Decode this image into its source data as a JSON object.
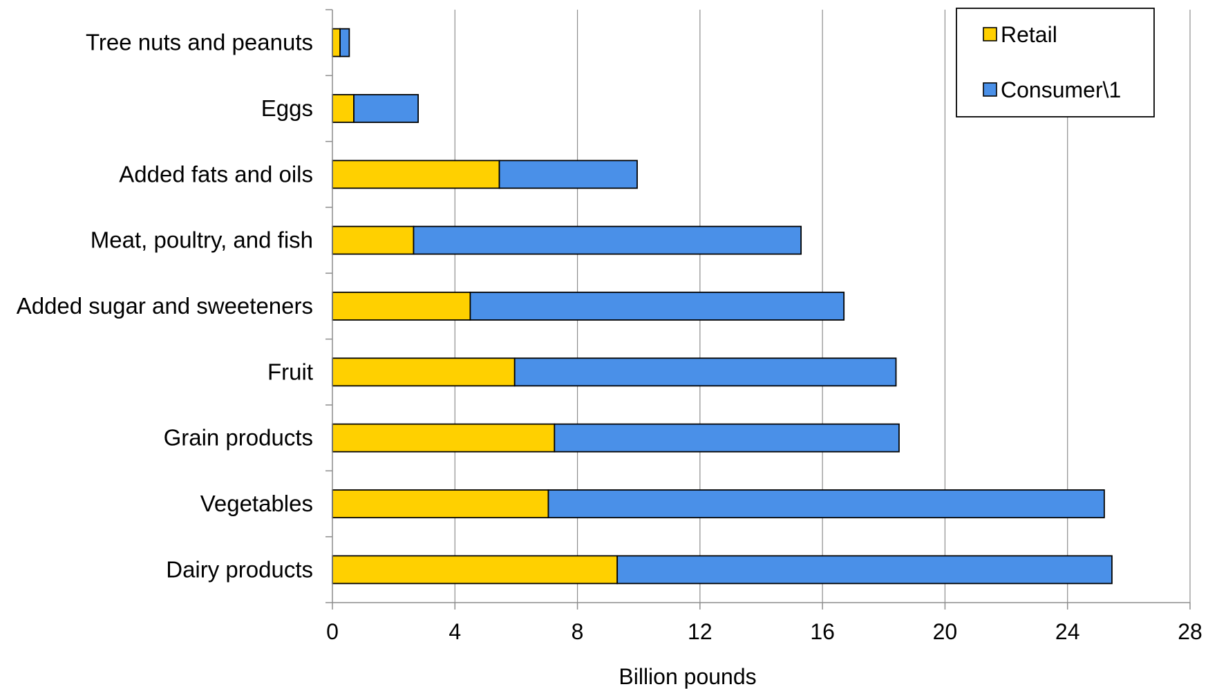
{
  "chart_data": {
    "type": "bar",
    "orientation": "horizontal",
    "stacked": true,
    "categories": [
      "Tree nuts and peanuts",
      "Eggs",
      "Added fats and oils",
      "Meat, poultry, and fish",
      "Added sugar and sweeteners",
      "Fruit",
      "Grain products",
      "Vegetables",
      "Dairy products"
    ],
    "series": [
      {
        "name": "Retail",
        "color": "#FFD000",
        "values": [
          0.25,
          0.7,
          5.45,
          2.65,
          4.5,
          5.95,
          7.25,
          7.05,
          9.3
        ]
      },
      {
        "name": "Consumer\\1",
        "color": "#4A90E8",
        "values": [
          0.3,
          2.1,
          4.5,
          12.65,
          12.2,
          12.45,
          11.25,
          18.15,
          16.15
        ]
      }
    ],
    "xlabel": "Billion pounds",
    "xlim": [
      0,
      28
    ],
    "xticks": [
      "0",
      "4",
      "8",
      "12",
      "16",
      "20",
      "24",
      "28"
    ],
    "xtick_values": [
      0,
      4,
      8,
      12,
      16,
      20,
      24,
      28
    ],
    "grid": "vertical",
    "legend_position": "top-right"
  }
}
